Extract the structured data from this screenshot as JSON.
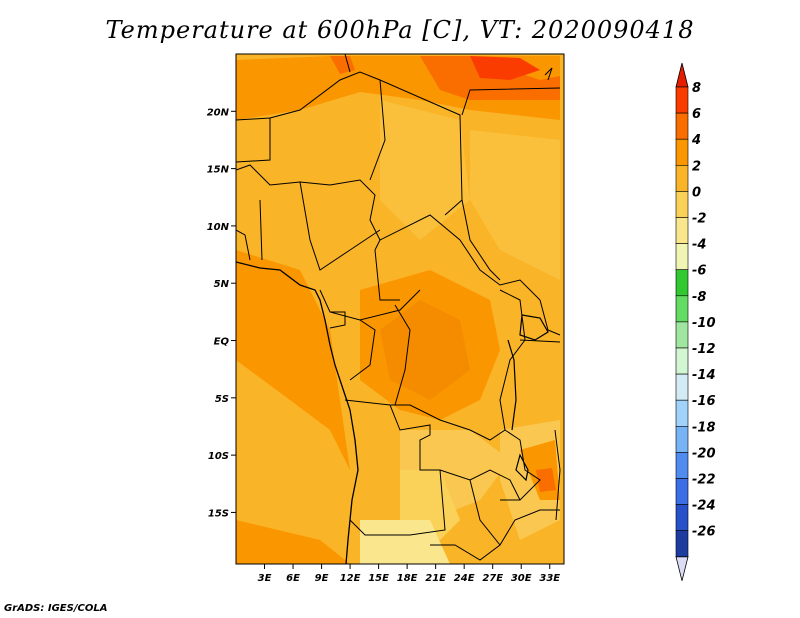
{
  "title": "Temperature at 600hPa [C], VT: 2020090418",
  "credit": "GrADS: IGES/COLA",
  "map": {
    "lat_ticks": [
      {
        "label": "20N",
        "value": 20
      },
      {
        "label": "15N",
        "value": 15
      },
      {
        "label": "10N",
        "value": 10
      },
      {
        "label": "5N",
        "value": 5
      },
      {
        "label": "EQ",
        "value": 0
      },
      {
        "label": "5S",
        "value": -5
      },
      {
        "label": "10S",
        "value": -10
      },
      {
        "label": "15S",
        "value": -15
      }
    ],
    "lon_ticks": [
      {
        "label": "3E",
        "value": 3
      },
      {
        "label": "6E",
        "value": 6
      },
      {
        "label": "9E",
        "value": 9
      },
      {
        "label": "12E",
        "value": 12
      },
      {
        "label": "15E",
        "value": 15
      },
      {
        "label": "18E",
        "value": 18
      },
      {
        "label": "21E",
        "value": 21
      },
      {
        "label": "24E",
        "value": 24
      },
      {
        "label": "27E",
        "value": 27
      },
      {
        "label": "30E",
        "value": 30
      },
      {
        "label": "33E",
        "value": 33
      }
    ],
    "lon_range": [
      0,
      34.5
    ],
    "lat_range": [
      -19.5,
      25
    ]
  },
  "colorbar": {
    "levels": [
      "8",
      "6",
      "4",
      "2",
      "0",
      "-2",
      "-4",
      "-6",
      "-8",
      "-10",
      "-12",
      "-14",
      "-16",
      "-18",
      "-20",
      "-22",
      "-24",
      "-26"
    ],
    "colors": [
      "#fa3c00",
      "#fa6e00",
      "#fa9600",
      "#fab428",
      "#fad25a",
      "#fae68c",
      "#f0f5b4",
      "#32c832",
      "#64dc64",
      "#a0e6a0",
      "#d2f5d2",
      "#d2ebf5",
      "#a0d2fa",
      "#78b4f5",
      "#508cf0",
      "#3c6ee6",
      "#2850c8",
      "#1e3ca0"
    ],
    "top_cap_color": "#e61e00",
    "bottom_cap_color": "#dcdcf5"
  }
}
